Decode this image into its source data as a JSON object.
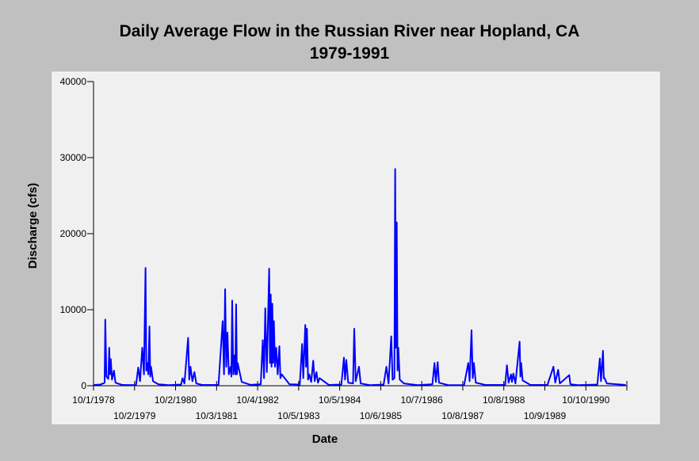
{
  "chart_data": {
    "type": "line",
    "title": "Daily Average Flow in the Russian River near Hopland, CA",
    "subtitle": "1979-1991",
    "x_label": "Date",
    "y_label": "Discharge (cfs)",
    "color": "#0000ff",
    "xlim": [
      "10/1/1978",
      "10/11/1991"
    ],
    "xticks": [
      "10/1/1978",
      "10/2/1979",
      "10/2/1980",
      "10/3/1981",
      "10/4/1982",
      "10/5/1983",
      "10/5/1984",
      "10/6/1985",
      "10/7/1986",
      "10/8/1987",
      "10/8/1988",
      "10/9/1989",
      "10/10/1990"
    ],
    "ylim": [
      0,
      40000
    ],
    "yticks": [
      0,
      10000,
      20000,
      30000,
      40000
    ],
    "grid": false,
    "x": [
      "10/1/1978",
      "12/1/1978",
      "1/8/1979",
      "1/14/1979",
      "1/24/1979",
      "2/10/1979",
      "2/18/1979",
      "2/25/1979",
      "3/4/1979",
      "3/15/1979",
      "4/1/1979",
      "4/15/1979",
      "6/15/1979",
      "10/15/1979",
      "11/4/1979",
      "11/20/1979",
      "12/10/1979",
      "12/25/1979",
      "1/8/1980",
      "1/15/1980",
      "1/22/1980",
      "2/2/1980",
      "2/12/1980",
      "2/19/1980",
      "2/26/1980",
      "3/15/1980",
      "5/1/1980",
      "8/1/1980",
      "11/20/1980",
      "12/3/1980",
      "12/20/1980",
      "1/22/1981",
      "2/1/1981",
      "2/12/1981",
      "3/1/1981",
      "3/19/1981",
      "4/5/1981",
      "6/1/1981",
      "10/20/1981",
      "11/26/1981",
      "12/8/1981",
      "12/18/1981",
      "12/28/1981",
      "1/8/1982",
      "1/20/1982",
      "2/5/1982",
      "2/12/1982",
      "2/19/1982",
      "3/1/1982",
      "3/12/1982",
      "3/19/1982",
      "3/26/1982",
      "4/2/1982",
      "4/9/1982",
      "5/15/1982",
      "8/1/1982",
      "11/1/1982",
      "11/19/1982",
      "11/30/1982",
      "12/11/1982",
      "12/25/1982",
      "1/15/1983",
      "1/22/1983",
      "1/29/1983",
      "2/5/1983",
      "2/12/1983",
      "2/19/1983",
      "2/26/1983",
      "3/8/1983",
      "3/19/1983",
      "4/1/1983",
      "4/16/1983",
      "4/25/1983",
      "5/7/1983",
      "7/15/1983",
      "10/15/1983",
      "11/5/1983",
      "11/15/1983",
      "12/3/1983",
      "12/10/1983",
      "12/18/1983",
      "12/28/1983",
      "1/8/1984",
      "1/25/1984",
      "2/12/1984",
      "2/25/1984",
      "3/12/1984",
      "3/25/1984",
      "4/9/1984",
      "7/1/1984",
      "10/20/1984",
      "11/12/1984",
      "11/22/1984",
      "12/3/1984",
      "12/20/1984",
      "2/1/1985",
      "2/12/1985",
      "2/25/1985",
      "3/26/1985",
      "4/10/1985",
      "7/1/1985",
      "11/1/1985",
      "11/26/1985",
      "12/15/1985",
      "1/8/1986",
      "1/20/1986",
      "2/5/1986",
      "2/12/1986",
      "2/19/1986",
      "2/26/1986",
      "3/5/1986",
      "3/12/1986",
      "3/25/1986",
      "5/1/1986",
      "9/1/1986",
      "1/10/1987",
      "1/29/1987",
      "2/10/1987",
      "2/26/1987",
      "3/10/1987",
      "6/1/1987",
      "10/20/1987",
      "11/26/1987",
      "12/8/1987",
      "12/25/1987",
      "1/5/1988",
      "1/15/1988",
      "2/1/1988",
      "5/1/1988",
      "10/20/1988",
      "11/5/1988",
      "11/20/1988",
      "12/11/1988",
      "12/20/1988",
      "1/1/1989",
      "1/20/1989",
      "2/26/1989",
      "3/5/1989",
      "3/12/1989",
      "3/25/1989",
      "6/1/1989",
      "11/1/1989",
      "12/25/1989",
      "1/10/1990",
      "2/5/1990",
      "2/20/1990",
      "5/15/1990",
      "5/25/1990",
      "8/1/1990",
      "1/20/1991",
      "2/12/1991",
      "2/22/1991",
      "3/12/1991",
      "3/19/1991",
      "3/26/1991",
      "4/15/1991",
      "9/30/1991"
    ],
    "values": [
      100,
      150,
      400,
      8700,
      1200,
      900,
      5000,
      1500,
      3500,
      800,
      2000,
      400,
      100,
      80,
      2400,
      600,
      5000,
      1500,
      15500,
      2000,
      3000,
      1500,
      7800,
      1200,
      2500,
      600,
      200,
      80,
      150,
      1000,
      300,
      6300,
      800,
      2500,
      600,
      1800,
      300,
      100,
      100,
      8500,
      1500,
      12700,
      2500,
      7000,
      1500,
      2500,
      1200,
      11200,
      1500,
      4000,
      1500,
      10700,
      1500,
      3000,
      500,
      120,
      200,
      6000,
      1000,
      10200,
      1800,
      15400,
      3000,
      12000,
      2500,
      10800,
      3000,
      8500,
      2500,
      5000,
      1500,
      5200,
      1000,
      1500,
      200,
      150,
      5500,
      1000,
      8000,
      2500,
      7500,
      800,
      1500,
      500,
      3300,
      600,
      1800,
      400,
      1000,
      100,
      150,
      3700,
      800,
      3400,
      400,
      300,
      7500,
      600,
      2500,
      300,
      80,
      150,
      2500,
      300,
      6500,
      800,
      1000,
      28500,
      5000,
      21500,
      2000,
      5000,
      800,
      300,
      80,
      200,
      3000,
      500,
      3100,
      400,
      80,
      80,
      3000,
      600,
      7300,
      1000,
      3000,
      400,
      100,
      100,
      2700,
      400,
      1500,
      500,
      1600,
      300,
      5800,
      1200,
      3000,
      700,
      120,
      100,
      2500,
      400,
      2100,
      300,
      1400,
      200,
      80,
      150,
      3600,
      600,
      4600,
      1000,
      1000,
      300,
      100
    ]
  }
}
